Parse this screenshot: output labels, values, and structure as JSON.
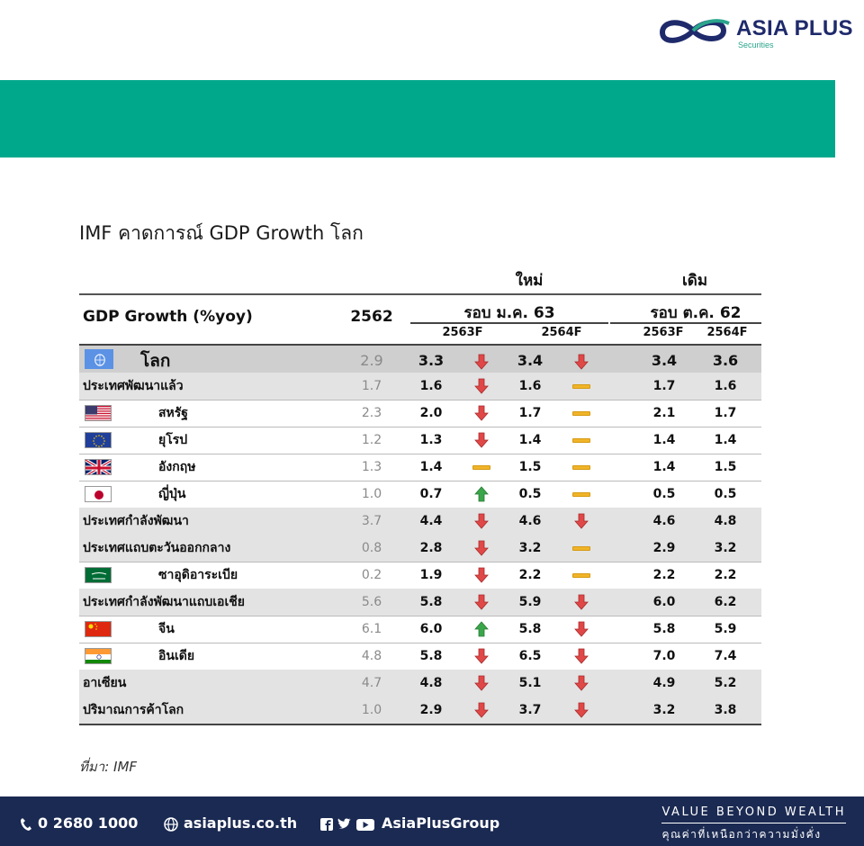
{
  "brand": {
    "name": "ASIA PLUS",
    "sub": "Securities"
  },
  "title": "IMF คาดการณ์ GDP Growth โลก",
  "table": {
    "metric_label": "GDP Growth (%yoy)",
    "base_year": "2562",
    "group_new": {
      "title": "ใหม่",
      "round": "รอบ ม.ค. 63",
      "cols": [
        "2563F",
        "2564F"
      ]
    },
    "group_old": {
      "title": "เดิม",
      "round": "รอบ ต.ค. 62",
      "cols": [
        "2563F",
        "2564F"
      ]
    },
    "rows": [
      {
        "label": "โลก",
        "flag": "un",
        "base": "2.9",
        "n1": "3.3",
        "a1": "down",
        "n2": "3.4",
        "a2": "down",
        "o1": "3.4",
        "o2": "3.6",
        "style": "world"
      },
      {
        "label": "ประเทศพัฒนาแล้ว",
        "flag": "",
        "base": "1.7",
        "n1": "1.6",
        "a1": "down",
        "n2": "1.6",
        "a2": "flat",
        "o1": "1.7",
        "o2": "1.6",
        "style": "shaded"
      },
      {
        "label": "สหรัฐ",
        "flag": "us",
        "base": "2.3",
        "n1": "2.0",
        "a1": "down",
        "n2": "1.7",
        "a2": "flat",
        "o1": "2.1",
        "o2": "1.7",
        "style": ""
      },
      {
        "label": "ยุโรป",
        "flag": "eu",
        "base": "1.2",
        "n1": "1.3",
        "a1": "down",
        "n2": "1.4",
        "a2": "flat",
        "o1": "1.4",
        "o2": "1.4",
        "style": ""
      },
      {
        "label": "อังกฤษ",
        "flag": "uk",
        "base": "1.3",
        "n1": "1.4",
        "a1": "flat",
        "n2": "1.5",
        "a2": "flat",
        "o1": "1.4",
        "o2": "1.5",
        "style": ""
      },
      {
        "label": "ญี่ปุ่น",
        "flag": "jp",
        "base": "1.0",
        "n1": "0.7",
        "a1": "up",
        "n2": "0.5",
        "a2": "flat",
        "o1": "0.5",
        "o2": "0.5",
        "style": ""
      },
      {
        "label": "ประเทศกำลังพัฒนา",
        "flag": "",
        "base": "3.7",
        "n1": "4.4",
        "a1": "down",
        "n2": "4.6",
        "a2": "down",
        "o1": "4.6",
        "o2": "4.8",
        "style": "shaded"
      },
      {
        "label": "ประเทศแถบตะวันออกกลาง",
        "flag": "",
        "base": "0.8",
        "n1": "2.8",
        "a1": "down",
        "n2": "3.2",
        "a2": "flat",
        "o1": "2.9",
        "o2": "3.2",
        "style": "shaded"
      },
      {
        "label": "ซาอุดิอาระเบีย",
        "flag": "sa",
        "base": "0.2",
        "n1": "1.9",
        "a1": "down",
        "n2": "2.2",
        "a2": "flat",
        "o1": "2.2",
        "o2": "2.2",
        "style": ""
      },
      {
        "label": "ประเทศกำลังพัฒนาแถบเอเชีย",
        "flag": "",
        "base": "5.6",
        "n1": "5.8",
        "a1": "down",
        "n2": "5.9",
        "a2": "down",
        "o1": "6.0",
        "o2": "6.2",
        "style": "shaded"
      },
      {
        "label": "จีน",
        "flag": "cn",
        "base": "6.1",
        "n1": "6.0",
        "a1": "up",
        "n2": "5.8",
        "a2": "down",
        "o1": "5.8",
        "o2": "5.9",
        "style": ""
      },
      {
        "label": "อินเดีย",
        "flag": "in",
        "base": "4.8",
        "n1": "5.8",
        "a1": "down",
        "n2": "6.5",
        "a2": "down",
        "o1": "7.0",
        "o2": "7.4",
        "style": ""
      },
      {
        "label": "อาเซียน",
        "flag": "",
        "base": "4.7",
        "n1": "4.8",
        "a1": "down",
        "n2": "5.1",
        "a2": "down",
        "o1": "4.9",
        "o2": "5.2",
        "style": "shaded"
      },
      {
        "label": "ปริมาณการค้าโลก",
        "flag": "",
        "base": "1.0",
        "n1": "2.9",
        "a1": "down",
        "n2": "3.7",
        "a2": "down",
        "o1": "3.2",
        "o2": "3.8",
        "style": "shaded"
      }
    ]
  },
  "source": "ที่มา: IMF",
  "footer": {
    "phone": "0 2680 1000",
    "website": "asiaplus.co.th",
    "social": "AsiaPlusGroup",
    "slogan_en": "VALUE BEYOND WEALTH",
    "slogan_th": "คุณค่าที่เหนือกว่าความมั่งคั่ง"
  },
  "colors": {
    "band": "#00a88b",
    "footer": "#1b2a52",
    "arrow_down": "#e04848",
    "arrow_up": "#3aa64a",
    "flat": "#f0b429"
  }
}
